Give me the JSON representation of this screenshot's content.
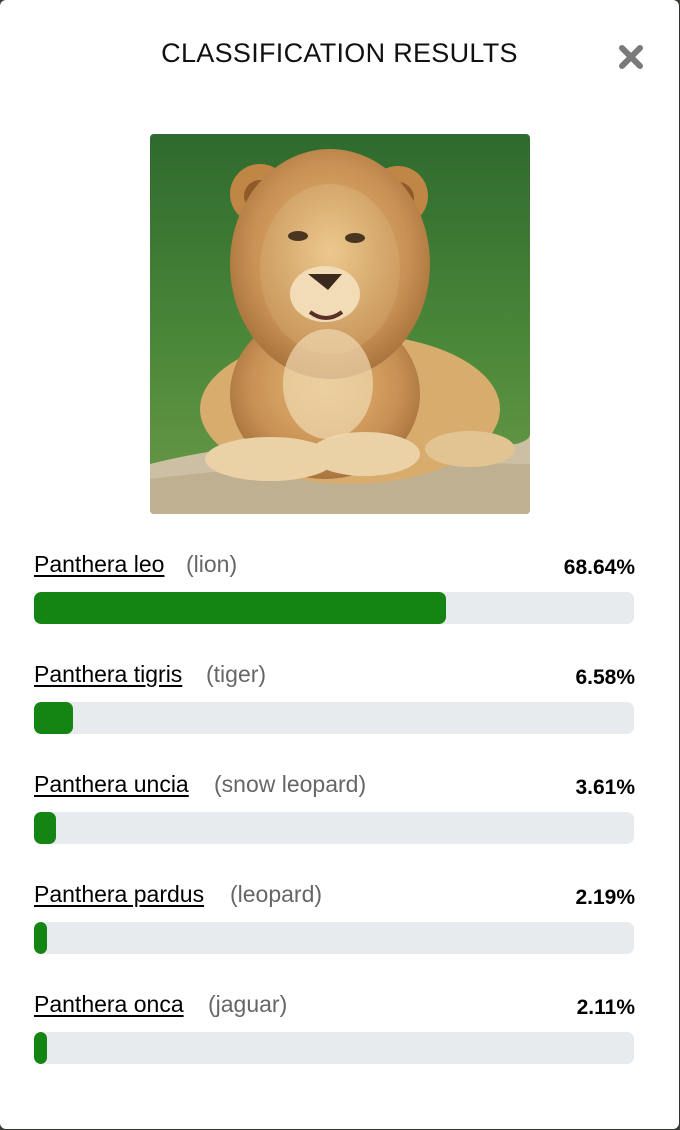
{
  "modal": {
    "title": "CLASSIFICATION RESULTS",
    "close_icon": "close-icon"
  },
  "image": {
    "subject": "lion photo"
  },
  "results": [
    {
      "species": "Panthera leo",
      "common": "(lion)",
      "percent_label": "68.64%",
      "fraction": 0.6864
    },
    {
      "species": "Panthera tigris",
      "common": "(tiger)",
      "percent_label": "6.58%",
      "fraction": 0.0658
    },
    {
      "species": "Panthera uncia",
      "common": "(snow leopard)",
      "percent_label": "3.61%",
      "fraction": 0.0361
    },
    {
      "species": "Panthera pardus",
      "common": "(leopard)",
      "percent_label": "2.19%",
      "fraction": 0.0219
    },
    {
      "species": "Panthera onca",
      "common": "(jaguar)",
      "percent_label": "2.11%",
      "fraction": 0.0211
    }
  ],
  "colors": {
    "bar_fill": "#148513",
    "bar_track": "#e8ebee",
    "common_name": "#666666"
  }
}
